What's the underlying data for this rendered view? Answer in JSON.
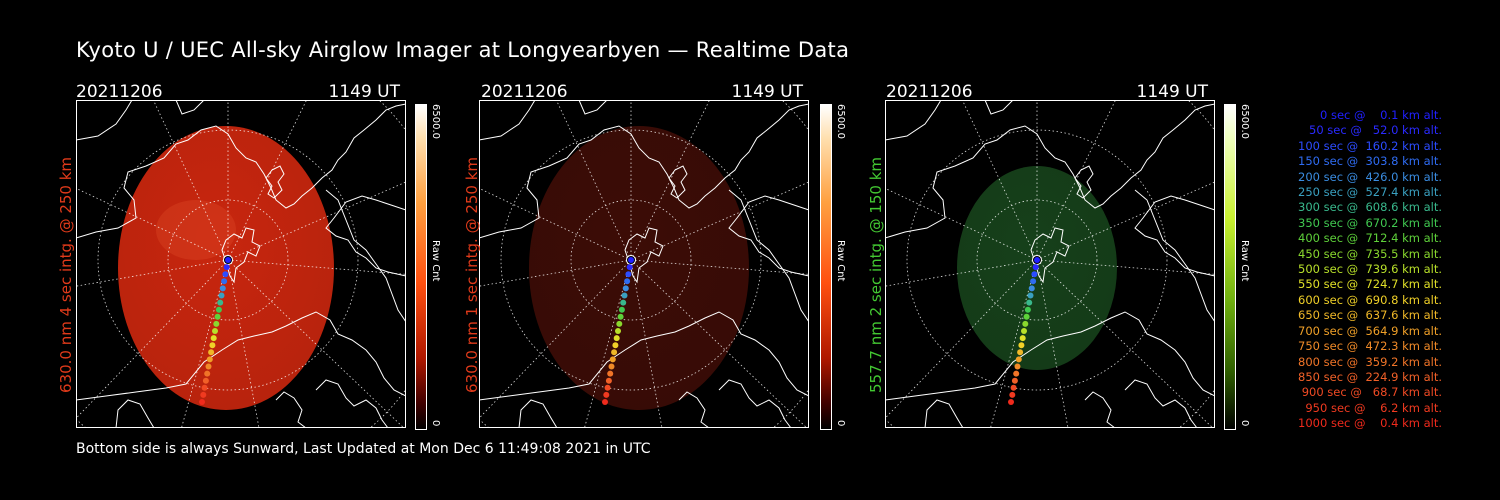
{
  "title": "Kyoto U / UEC All-sky Airglow Imager at Longyearbyen — Realtime Data",
  "footer": "Bottom side is always Sunward, Last Updated at Mon Dec  6 11:49:08 2021 in UTC",
  "panels": [
    {
      "date": "20211206",
      "time": "1149 UT",
      "side_label": "630.0 nm 4 sec intg. @ 250 km",
      "side_color": "#e03a1a",
      "cbar_top": "6500.0",
      "cbar_bottom": "0",
      "cbar_unit": "Raw Cnt",
      "colormap": "red",
      "glow_color": "#c8260e",
      "glow_opacity": 0.95
    },
    {
      "date": "20211206",
      "time": "1149 UT",
      "side_label": "630.0 nm 1 sec intg. @ 250 km",
      "side_color": "#e03a1a",
      "cbar_top": "6500.0",
      "cbar_bottom": "0",
      "cbar_unit": "Raw Cnt",
      "colormap": "red",
      "glow_color": "#3c0c06",
      "glow_opacity": 1.0
    },
    {
      "date": "20211206",
      "time": "1149 UT",
      "side_label": "557.7 nm 2 sec intg. @ 150 km",
      "side_color": "#43c832",
      "cbar_top": "6500.0",
      "cbar_bottom": "0",
      "cbar_unit": "Raw Cnt",
      "colormap": "green",
      "glow_color": "#16401a",
      "glow_opacity": 1.0
    }
  ],
  "legend": [
    {
      "text": "0 sec @    0.1 km alt.",
      "color": "#2020ff"
    },
    {
      "text": "50 sec @   52.0 km alt.",
      "color": "#2a2aff"
    },
    {
      "text": "100 sec @  160.2 km alt.",
      "color": "#2c4cff"
    },
    {
      "text": "150 sec @  303.8 km alt.",
      "color": "#2f6cf2"
    },
    {
      "text": "200 sec @  426.0 km alt.",
      "color": "#3a8ce0"
    },
    {
      "text": "250 sec @  527.4 km alt.",
      "color": "#3aa0c0"
    },
    {
      "text": "300 sec @  608.6 km alt.",
      "color": "#39b88c"
    },
    {
      "text": "350 sec @  670.2 km alt.",
      "color": "#40c850"
    },
    {
      "text": "400 sec @  712.4 km alt.",
      "color": "#5ed03a"
    },
    {
      "text": "450 sec @  735.5 km alt.",
      "color": "#8ad82e"
    },
    {
      "text": "500 sec @  739.6 km alt.",
      "color": "#b8e02a"
    },
    {
      "text": "550 sec @  724.7 km alt.",
      "color": "#e0e028"
    },
    {
      "text": "600 sec @  690.8 km alt.",
      "color": "#f0d028"
    },
    {
      "text": "650 sec @  637.6 km alt.",
      "color": "#f0b828"
    },
    {
      "text": "700 sec @  564.9 km alt.",
      "color": "#f0a028"
    },
    {
      "text": "750 sec @  472.3 km alt.",
      "color": "#f08a28"
    },
    {
      "text": "800 sec @  359.2 km alt.",
      "color": "#f07428"
    },
    {
      "text": "850 sec @  224.9 km alt.",
      "color": "#f06028"
    },
    {
      "text": "900 sec @   68.7 km alt.",
      "color": "#f04a24"
    },
    {
      "text": "950 sec @    6.2 km alt.",
      "color": "#f03a20"
    },
    {
      "text": "1000 sec @    0.4 km alt.",
      "color": "#f02a1c"
    }
  ]
}
